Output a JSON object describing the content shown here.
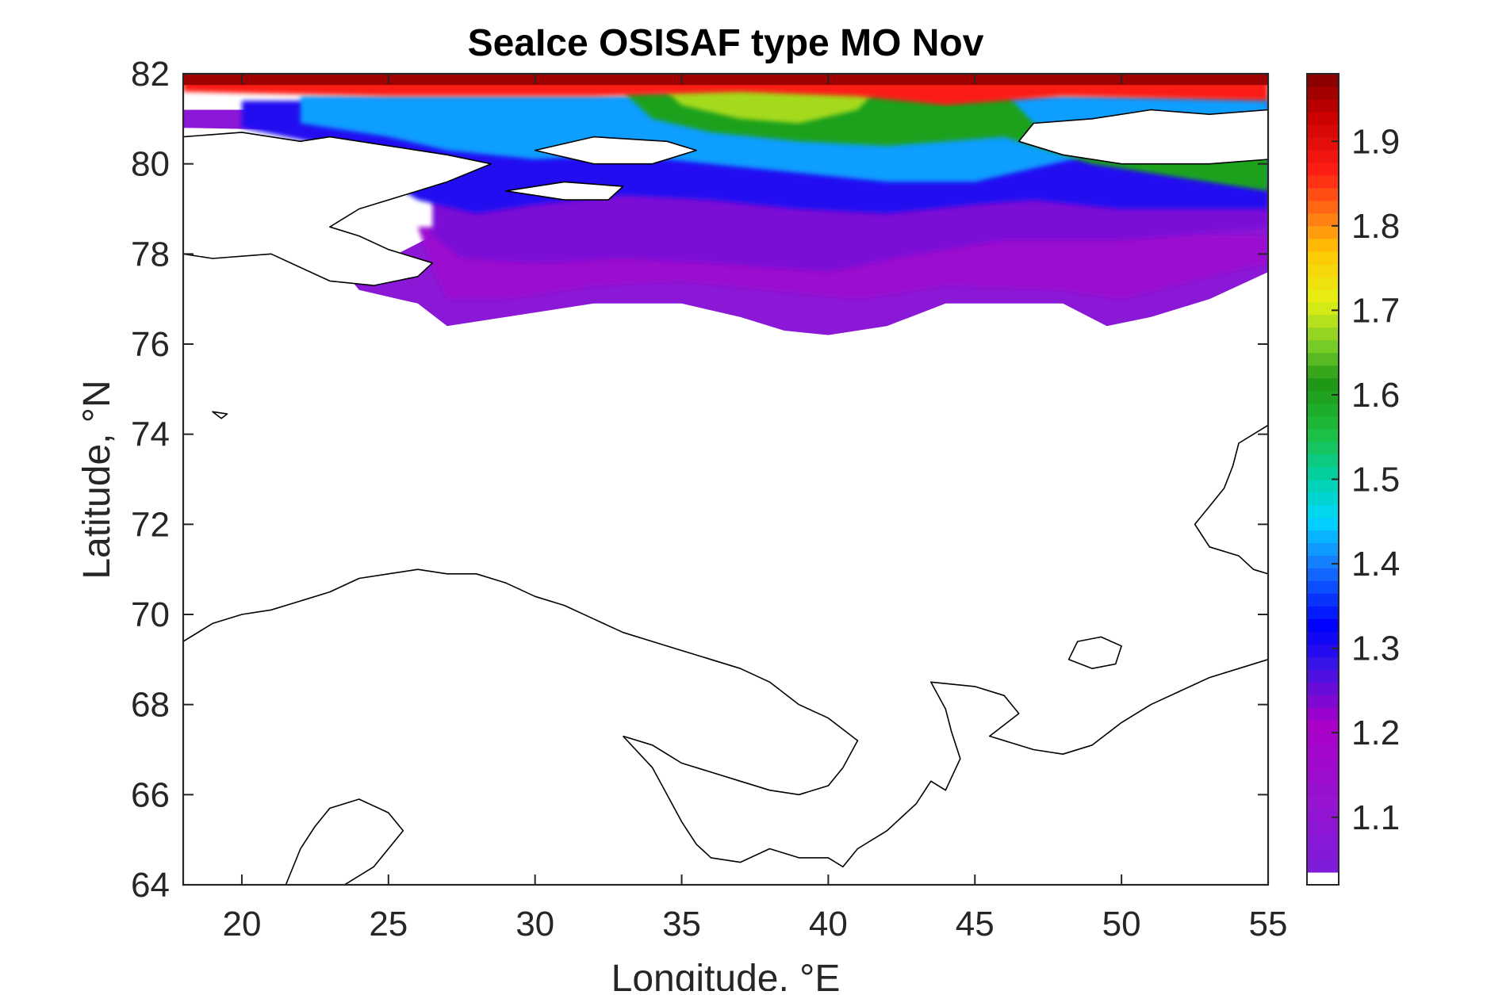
{
  "chart_data": {
    "type": "heatmap",
    "title": "SeaIce OSISAF type MO Nov",
    "xlabel": "Longitude, °E",
    "ylabel": "Latitude, °N",
    "xlim": [
      18,
      55
    ],
    "ylim": [
      64,
      82
    ],
    "x_ticks": [
      20,
      25,
      30,
      35,
      40,
      45,
      50,
      55
    ],
    "y_ticks": [
      64,
      66,
      68,
      70,
      72,
      74,
      76,
      78,
      80,
      82
    ],
    "colorbar": {
      "range": [
        1.02,
        1.98
      ],
      "ticks": [
        1.1,
        1.2,
        1.3,
        1.4,
        1.5,
        1.6,
        1.7,
        1.8,
        1.9
      ],
      "colormap": "rainbow (purple → blue → cyan → green → yellow → orange → red → dark red)",
      "bottom_bin_color": "#ffffff"
    },
    "field_by_latitude_bands": [
      {
        "lat_range": [
          81.5,
          82.0
        ],
        "lon_range": [
          18,
          55
        ],
        "value_range": [
          1.8,
          1.98
        ]
      },
      {
        "lat_range": [
          80.5,
          81.5
        ],
        "lon_range": [
          35,
          45
        ],
        "value_range": [
          1.55,
          1.75
        ]
      },
      {
        "lat_range": [
          79.0,
          80.5
        ],
        "lon_range": [
          30,
          55
        ],
        "value_range": [
          1.35,
          1.6
        ]
      },
      {
        "lat_range": [
          78.0,
          79.5
        ],
        "lon_range": [
          26,
          50
        ],
        "value_range": [
          1.2,
          1.3
        ]
      },
      {
        "lat_range": [
          76.2,
          78.0
        ],
        "lon_range": [
          26,
          55
        ],
        "value_range": [
          1.03,
          1.15
        ]
      }
    ],
    "grid": false,
    "land_outline": "black coastline contours"
  }
}
